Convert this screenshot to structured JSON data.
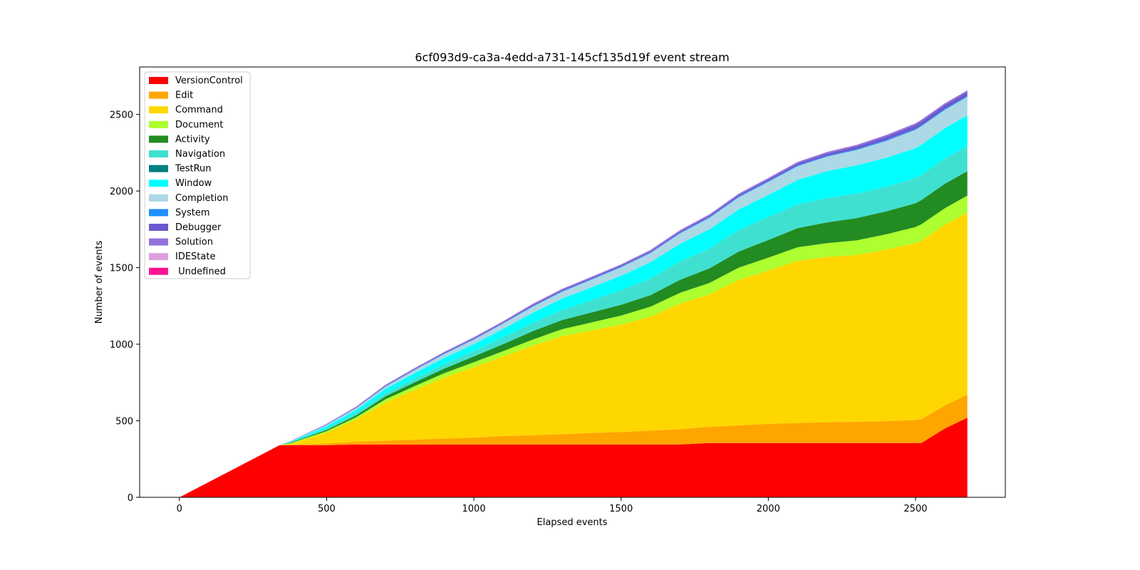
{
  "chart_data": {
    "type": "area",
    "stacked": true,
    "title": "6cf093d9-ca3a-4edd-a731-145cf135d19f event stream",
    "xlabel": "Elapsed events",
    "ylabel": "Number of events",
    "xlim": [
      -135,
      2805
    ],
    "ylim": [
      0,
      2810
    ],
    "xticks": [
      0,
      500,
      1000,
      1500,
      2000,
      2500
    ],
    "yticks": [
      0,
      500,
      1000,
      1500,
      2000,
      2500
    ],
    "grid": false,
    "legend_position": "upper-left",
    "x": [
      0,
      340,
      380,
      500,
      600,
      700,
      800,
      900,
      1000,
      1100,
      1200,
      1300,
      1400,
      1500,
      1600,
      1700,
      1800,
      1900,
      2000,
      2100,
      2200,
      2300,
      2400,
      2500,
      2520,
      2600,
      2676
    ],
    "series": [
      {
        "name": "VersionControl",
        "color": "#ff0000",
        "values": [
          0,
          340,
          340,
          340,
          345,
          345,
          345,
          345,
          345,
          345,
          345,
          345,
          345,
          345,
          345,
          345,
          355,
          355,
          355,
          355,
          355,
          355,
          355,
          355,
          355,
          450,
          520
        ]
      },
      {
        "name": "Edit",
        "color": "#ffa500",
        "values": [
          0,
          0,
          5,
          12,
          18,
          25,
          32,
          38,
          45,
          55,
          60,
          68,
          75,
          82,
          90,
          100,
          105,
          115,
          125,
          130,
          135,
          138,
          142,
          150,
          155,
          150,
          150
        ]
      },
      {
        "name": "Command",
        "color": "#ffd700",
        "values": [
          0,
          0,
          5,
          70,
          145,
          250,
          325,
          400,
          460,
          520,
          585,
          640,
          670,
          700,
          745,
          820,
          865,
          950,
          1000,
          1060,
          1080,
          1090,
          1120,
          1155,
          1165,
          1180,
          1190
        ]
      },
      {
        "name": "Document",
        "color": "#adff2f",
        "values": [
          0,
          0,
          5,
          10,
          15,
          20,
          25,
          28,
          32,
          35,
          40,
          45,
          52,
          60,
          65,
          70,
          75,
          80,
          85,
          88,
          90,
          95,
          100,
          105,
          108,
          108,
          110
        ]
      },
      {
        "name": "Activity",
        "color": "#228b22",
        "values": [
          0,
          0,
          3,
          8,
          12,
          20,
          25,
          30,
          38,
          45,
          55,
          60,
          65,
          70,
          75,
          85,
          95,
          105,
          115,
          125,
          135,
          145,
          150,
          155,
          158,
          160,
          160
        ]
      },
      {
        "name": "Navigation",
        "color": "#40e0d0",
        "values": [
          0,
          0,
          4,
          10,
          15,
          20,
          25,
          30,
          35,
          45,
          55,
          65,
          80,
          95,
          110,
          120,
          130,
          140,
          150,
          155,
          160,
          160,
          160,
          165,
          165,
          165,
          165
        ]
      },
      {
        "name": "TestRun",
        "color": "#008080",
        "values": [
          0,
          0,
          0,
          0,
          0,
          0,
          0,
          0,
          0,
          0,
          0,
          0,
          0,
          0,
          0,
          0,
          0,
          0,
          0,
          0,
          0,
          0,
          0,
          0,
          0,
          0,
          0
        ]
      },
      {
        "name": "Window",
        "color": "#00ffff",
        "values": [
          0,
          0,
          4,
          15,
          20,
          28,
          35,
          40,
          45,
          55,
          65,
          75,
          85,
          95,
          105,
          115,
          125,
          135,
          145,
          160,
          175,
          185,
          190,
          195,
          197,
          198,
          200
        ]
      },
      {
        "name": "Completion",
        "color": "#add8e6",
        "values": [
          0,
          0,
          2,
          8,
          12,
          15,
          20,
          25,
          30,
          35,
          40,
          45,
          50,
          55,
          60,
          68,
          75,
          80,
          85,
          90,
          95,
          100,
          110,
          120,
          120,
          120,
          120
        ]
      },
      {
        "name": "System",
        "color": "#1e90ff",
        "values": [
          0,
          0,
          0,
          2,
          2,
          3,
          3,
          3,
          3,
          3,
          4,
          4,
          4,
          4,
          4,
          4,
          5,
          5,
          5,
          5,
          5,
          5,
          6,
          6,
          6,
          6,
          6
        ]
      },
      {
        "name": "Debugger",
        "color": "#6a5acd",
        "values": [
          0,
          0,
          0,
          0,
          2,
          3,
          3,
          4,
          5,
          5,
          6,
          6,
          6,
          7,
          7,
          8,
          8,
          9,
          10,
          12,
          15,
          18,
          22,
          25,
          25,
          25,
          25
        ]
      },
      {
        "name": "Solution",
        "color": "#9370db",
        "values": [
          0,
          0,
          2,
          5,
          6,
          6,
          7,
          7,
          7,
          7,
          8,
          8,
          8,
          8,
          9,
          9,
          9,
          9,
          10,
          10,
          10,
          10,
          10,
          11,
          11,
          11,
          11
        ]
      },
      {
        "name": "IDEState",
        "color": "#dda0dd",
        "values": [
          0,
          0,
          0,
          0,
          0,
          0,
          0,
          0,
          0,
          0,
          1,
          1,
          1,
          1,
          1,
          1,
          1,
          1,
          1,
          1,
          1,
          1,
          1,
          1,
          1,
          1,
          1
        ]
      },
      {
        "name": " Undefined",
        "color": "#ff1493",
        "values": [
          0,
          0,
          0,
          0,
          0,
          0,
          0,
          0,
          0,
          0,
          0,
          0,
          0,
          0,
          0,
          0,
          0,
          0,
          0,
          0,
          0,
          0,
          0,
          0,
          0,
          0,
          0
        ]
      }
    ]
  }
}
